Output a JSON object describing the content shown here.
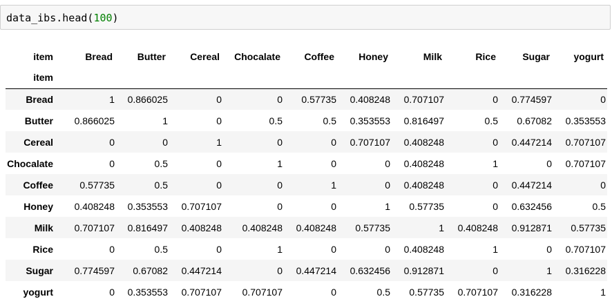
{
  "code_cell": {
    "prefix": "data_ibs.head(",
    "arg": "100",
    "suffix": ")"
  },
  "table": {
    "columns_label": "item",
    "index_label": "item",
    "columns": [
      "Bread",
      "Butter",
      "Cereal",
      "Chocalate",
      "Coffee",
      "Honey",
      "Milk",
      "Rice",
      "Sugar",
      "yogurt"
    ],
    "rows": [
      {
        "label": "Bread",
        "values": [
          "1",
          "0.866025",
          "0",
          "0",
          "0.57735",
          "0.408248",
          "0.707107",
          "0",
          "0.774597",
          "0"
        ]
      },
      {
        "label": "Butter",
        "values": [
          "0.866025",
          "1",
          "0",
          "0.5",
          "0.5",
          "0.353553",
          "0.816497",
          "0.5",
          "0.67082",
          "0.353553"
        ]
      },
      {
        "label": "Cereal",
        "values": [
          "0",
          "0",
          "1",
          "0",
          "0",
          "0.707107",
          "0.408248",
          "0",
          "0.447214",
          "0.707107"
        ]
      },
      {
        "label": "Chocalate",
        "values": [
          "0",
          "0.5",
          "0",
          "1",
          "0",
          "0",
          "0.408248",
          "1",
          "0",
          "0.707107"
        ]
      },
      {
        "label": "Coffee",
        "values": [
          "0.57735",
          "0.5",
          "0",
          "0",
          "1",
          "0",
          "0.408248",
          "0",
          "0.447214",
          "0"
        ]
      },
      {
        "label": "Honey",
        "values": [
          "0.408248",
          "0.353553",
          "0.707107",
          "0",
          "0",
          "1",
          "0.57735",
          "0",
          "0.632456",
          "0.5"
        ]
      },
      {
        "label": "Milk",
        "values": [
          "0.707107",
          "0.816497",
          "0.408248",
          "0.408248",
          "0.408248",
          "0.57735",
          "1",
          "0.408248",
          "0.912871",
          "0.57735"
        ]
      },
      {
        "label": "Rice",
        "values": [
          "0",
          "0.5",
          "0",
          "1",
          "0",
          "0",
          "0.408248",
          "1",
          "0",
          "0.707107"
        ]
      },
      {
        "label": "Sugar",
        "values": [
          "0.774597",
          "0.67082",
          "0.447214",
          "0",
          "0.447214",
          "0.632456",
          "0.912871",
          "0",
          "1",
          "0.316228"
        ]
      },
      {
        "label": "yogurt",
        "values": [
          "0",
          "0.353553",
          "0.707107",
          "0.707107",
          "0",
          "0.5",
          "0.57735",
          "0.707107",
          "0.316228",
          "1"
        ]
      }
    ]
  }
}
